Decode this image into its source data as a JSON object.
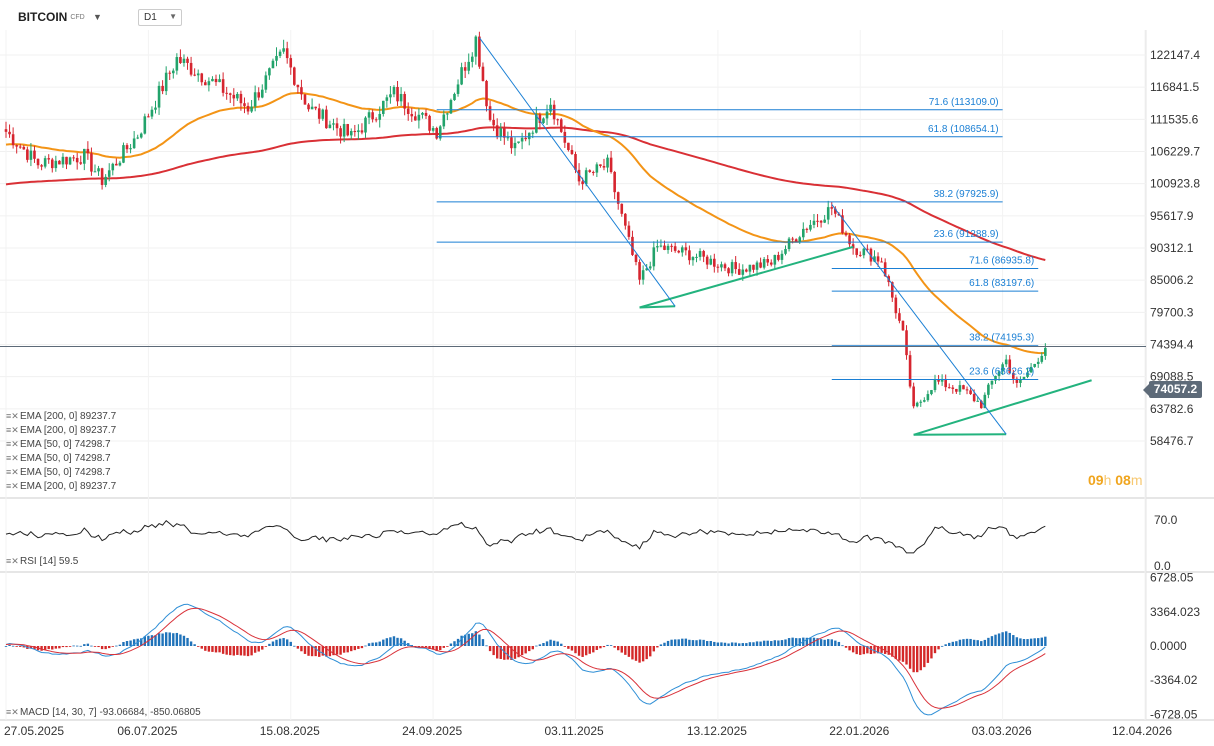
{
  "toolbar": {
    "symbol": "BITCOIN",
    "symbol_tag": "CFD",
    "timeframe": "D1"
  },
  "colors": {
    "up": "#22a36b",
    "down": "#d6252f",
    "ema50": "#f39416",
    "ema200": "#d93035",
    "fib": "#1a7fd4",
    "trend": "#23b37e",
    "macd_pos": "#1f72b9",
    "macd_neg": "#d42828",
    "macd_line": "#2f8fd6",
    "signal_line": "#d9323a"
  },
  "legend": {
    "ema_lines": [
      "EMA [200,  0] 89237.7",
      "EMA [200,  0] 89237.7",
      "EMA [50,  0] 74298.7",
      "EMA [50,  0] 74298.7",
      "EMA [50,  0] 74298.7",
      "EMA [200,  0] 89237.7"
    ],
    "rsi": "RSI [14]  59.5",
    "macd": "MACD [14, 30, 7] -93.06684,  -850.06805"
  },
  "countdown": {
    "hours": "09",
    "h": "h",
    "minutes": "08",
    "m": "m"
  },
  "last_price": "74057.2",
  "chart_data": {
    "type": "candlestick",
    "price_axis_ticks": [
      "122147.4",
      "116841.5",
      "111535.6",
      "106229.7",
      "100923.8",
      "95617.9",
      "90312.1",
      "85006.2",
      "79700.3",
      "74394.4",
      "69088.5",
      "63782.6",
      "58476.7"
    ],
    "rsi_axis_ticks": [
      "70.0",
      "0.0"
    ],
    "macd_axis_ticks": [
      "6728.05",
      "3364.023",
      "0.0000",
      "-3364.02",
      "-6728.05"
    ],
    "date_ticks": [
      "27.05.2025",
      "06.07.2025",
      "15.08.2025",
      "24.09.2025",
      "03.11.2025",
      "13.12.2025",
      "22.01.2026",
      "03.03.2026",
      "12.04.2026"
    ],
    "date_range": [
      "2025-05-27",
      "2026-04-12"
    ],
    "price_range": [
      57000,
      127000
    ],
    "closes_anchor": [
      [
        "2025-05-27",
        109500
      ],
      [
        "2025-06-05",
        104200
      ],
      [
        "2025-06-18",
        105500
      ],
      [
        "2025-06-23",
        101500
      ],
      [
        "2025-07-03",
        109000
      ],
      [
        "2025-07-14",
        121500
      ],
      [
        "2025-07-22",
        118500
      ],
      [
        "2025-08-03",
        113500
      ],
      [
        "2025-08-13",
        122500
      ],
      [
        "2025-08-20",
        113500
      ],
      [
        "2025-09-01",
        108600
      ],
      [
        "2025-09-13",
        115800
      ],
      [
        "2025-09-25",
        109600
      ],
      [
        "2025-10-06",
        124800
      ],
      [
        "2025-10-10",
        111500
      ],
      [
        "2025-10-17",
        106500
      ],
      [
        "2025-10-27",
        114500
      ],
      [
        "2025-11-04",
        101500
      ],
      [
        "2025-11-12",
        104000
      ],
      [
        "2025-11-21",
        84800
      ],
      [
        "2025-11-26",
        90500
      ],
      [
        "2025-12-05",
        89300
      ],
      [
        "2025-12-18",
        86800
      ],
      [
        "2025-12-28",
        87800
      ],
      [
        "2026-01-06",
        93500
      ],
      [
        "2026-01-14",
        96900
      ],
      [
        "2026-01-20",
        90500
      ],
      [
        "2026-01-28",
        88300
      ],
      [
        "2026-02-03",
        76000
      ],
      [
        "2026-02-06",
        63500
      ],
      [
        "2026-02-12",
        68300
      ],
      [
        "2026-02-20",
        66800
      ],
      [
        "2026-02-25",
        64500
      ],
      [
        "2026-03-01",
        69500
      ],
      [
        "2026-03-04",
        71800
      ],
      [
        "2026-03-07",
        67500
      ],
      [
        "2026-03-11",
        70500
      ],
      [
        "2026-03-15",
        74057.2
      ]
    ],
    "indicators": {
      "ema50_last": 74298.7,
      "ema200_last": 89237.7,
      "rsi_last": 59.5,
      "macd": {
        "params": [
          14,
          30,
          7
        ],
        "macd_last": -93.06684,
        "signal_last": -850.06805
      }
    },
    "fib_levels": [
      {
        "label": "71.6 (113109.0)",
        "value": 113109.0,
        "from": "2025-09-25",
        "to": "2026-03-03"
      },
      {
        "label": "61.8 (108654.1)",
        "value": 108654.1,
        "from": "2025-09-25",
        "to": "2026-03-03"
      },
      {
        "label": "38.2 (97925.9)",
        "value": 97925.9,
        "from": "2025-09-25",
        "to": "2026-03-03"
      },
      {
        "label": "23.6 (91288.9)",
        "value": 91288.9,
        "from": "2025-09-25",
        "to": "2026-03-03"
      },
      {
        "label": "71.6 (86935.8)",
        "value": 86935.8,
        "from": "2026-01-14",
        "to": "2026-03-13"
      },
      {
        "label": "61.8 (83197.6)",
        "value": 83197.6,
        "from": "2026-01-14",
        "to": "2026-03-13"
      },
      {
        "label": "38.2 (74195.3)",
        "value": 74195.3,
        "from": "2026-01-14",
        "to": "2026-03-13"
      },
      {
        "label": "23.6 (68626.2)",
        "value": 68626.2,
        "from": "2026-01-14",
        "to": "2026-03-13"
      }
    ],
    "trend_lines": [
      {
        "kind": "green",
        "points": [
          [
            "2025-11-21",
            80500
          ],
          [
            "2026-01-20",
            90500
          ]
        ]
      },
      {
        "kind": "green",
        "points": [
          [
            "2025-11-21",
            80500
          ],
          [
            "2025-12-01",
            80700
          ]
        ]
      },
      {
        "kind": "green",
        "points": [
          [
            "2026-02-06",
            59500
          ],
          [
            "2026-03-28",
            68500
          ]
        ]
      },
      {
        "kind": "green",
        "points": [
          [
            "2026-02-06",
            59500
          ],
          [
            "2026-03-04",
            59600
          ]
        ]
      },
      {
        "kind": "blue",
        "points": [
          [
            "2025-10-07",
            125000
          ],
          [
            "2025-12-01",
            80700
          ]
        ]
      },
      {
        "kind": "blue",
        "points": [
          [
            "2026-01-14",
            97500
          ],
          [
            "2026-03-04",
            59600
          ]
        ]
      }
    ]
  }
}
